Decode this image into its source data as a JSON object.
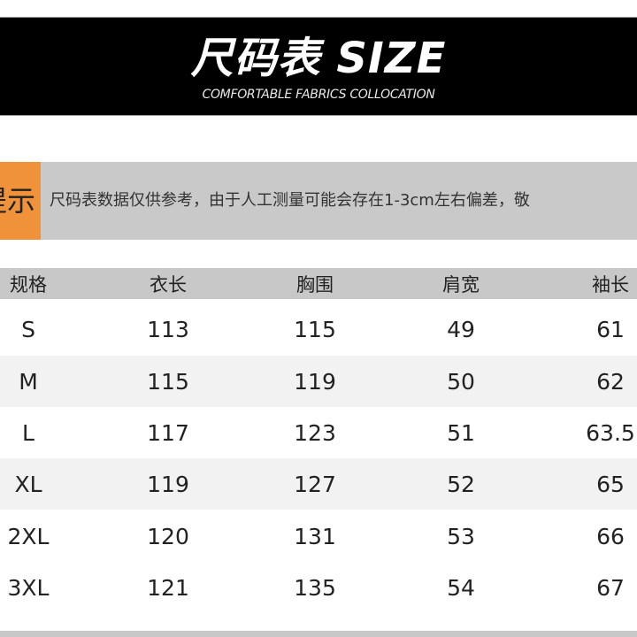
{
  "banner": {
    "title": "尺码表 SIZE",
    "subtitle": "COMFORTABLE FABRICS COLLOCATION"
  },
  "tip": {
    "label": "提示",
    "text": "尺码表数据仅供参考，由于人工测量可能会存在1-3cm左右偏差，敬"
  },
  "colors": {
    "accent": "#f0923a",
    "banner": "#000000",
    "tip_bg": "#c9c9c9",
    "header_bg": "#c8c8c8",
    "alt_row": "#f2f2f2"
  },
  "table": {
    "headers": [
      "规格",
      "衣长",
      "胸围",
      "肩宽",
      "袖长"
    ],
    "rows": [
      [
        "S",
        "113",
        "115",
        "49",
        "61"
      ],
      [
        "M",
        "115",
        "119",
        "50",
        "62"
      ],
      [
        "L",
        "117",
        "123",
        "51",
        "63.5"
      ],
      [
        "XL",
        "119",
        "127",
        "52",
        "65"
      ],
      [
        "2XL",
        "120",
        "131",
        "53",
        "66"
      ],
      [
        "3XL",
        "121",
        "135",
        "54",
        "67"
      ]
    ]
  }
}
